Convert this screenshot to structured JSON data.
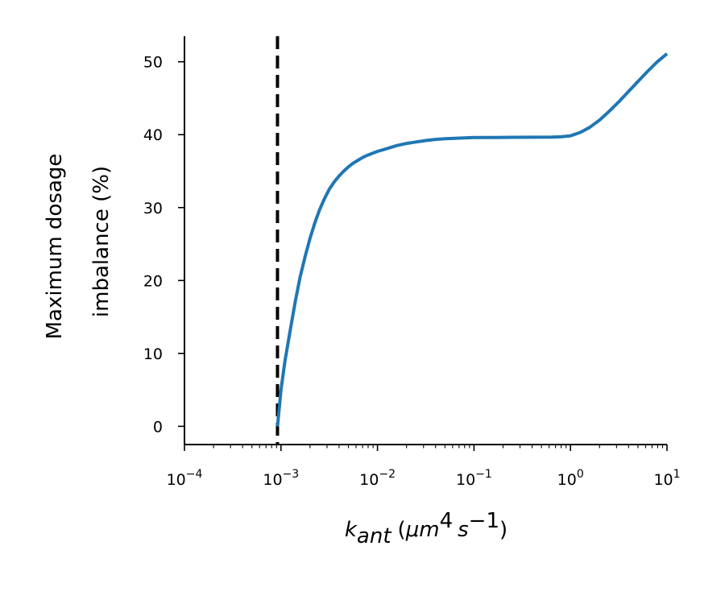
{
  "chart_data": {
    "type": "line",
    "title": "",
    "ylabel_lines": [
      "Maximum dosage",
      "imbalance (%)"
    ],
    "xlabel_parts": {
      "k": "k",
      "sub": "ant",
      "open": "(",
      "mu_m": "μm",
      "sup4": "4",
      "s": "s",
      "supm1": "−1",
      "close": ")"
    },
    "x_scale": "log",
    "xlim": [
      0.0001,
      10
    ],
    "ylim": [
      -2.5,
      53.5
    ],
    "x_ticks": [
      {
        "value": 0.0001,
        "base": "10",
        "exp": "−4"
      },
      {
        "value": 0.001,
        "base": "10",
        "exp": "−3"
      },
      {
        "value": 0.01,
        "base": "10",
        "exp": "−2"
      },
      {
        "value": 0.1,
        "base": "10",
        "exp": "−1"
      },
      {
        "value": 1,
        "base": "10",
        "exp": "0"
      },
      {
        "value": 10,
        "base": "10",
        "exp": "1"
      }
    ],
    "y_ticks": [
      {
        "value": 0,
        "label": "0"
      },
      {
        "value": 10,
        "label": "10"
      },
      {
        "value": 20,
        "label": "20"
      },
      {
        "value": 30,
        "label": "30"
      },
      {
        "value": 40,
        "label": "40"
      },
      {
        "value": 50,
        "label": "50"
      }
    ],
    "vline": {
      "x": 0.00092,
      "style": "dashed",
      "color": "#000000"
    },
    "series": [
      {
        "color": "#1f77b4",
        "x": [
          0.00092,
          0.001,
          0.0011,
          0.00126,
          0.00141,
          0.00158,
          0.00178,
          0.002,
          0.00224,
          0.00251,
          0.00282,
          0.00316,
          0.00355,
          0.00398,
          0.00447,
          0.00501,
          0.00562,
          0.00631,
          0.00708,
          0.00794,
          0.00891,
          0.01,
          0.0126,
          0.0158,
          0.02,
          0.0251,
          0.0316,
          0.0398,
          0.0501,
          0.0631,
          0.0794,
          0.1,
          0.158,
          0.251,
          0.398,
          0.631,
          0.794,
          1.0,
          1.26,
          1.58,
          2.0,
          2.51,
          3.16,
          3.98,
          5.01,
          6.31,
          7.94,
          10.0
        ],
        "y": [
          0.0,
          5.0,
          9.0,
          13.5,
          17.2,
          20.5,
          23.3,
          25.8,
          27.9,
          29.7,
          31.2,
          32.5,
          33.5,
          34.3,
          35.0,
          35.6,
          36.1,
          36.5,
          36.9,
          37.2,
          37.45,
          37.7,
          38.1,
          38.5,
          38.8,
          39.0,
          39.2,
          39.35,
          39.45,
          39.5,
          39.55,
          39.6,
          39.62,
          39.64,
          39.65,
          39.66,
          39.7,
          39.85,
          40.3,
          41.0,
          42.0,
          43.2,
          44.5,
          45.9,
          47.3,
          48.7,
          50.0,
          51.1
        ]
      }
    ],
    "grid": false,
    "legend": "none"
  }
}
